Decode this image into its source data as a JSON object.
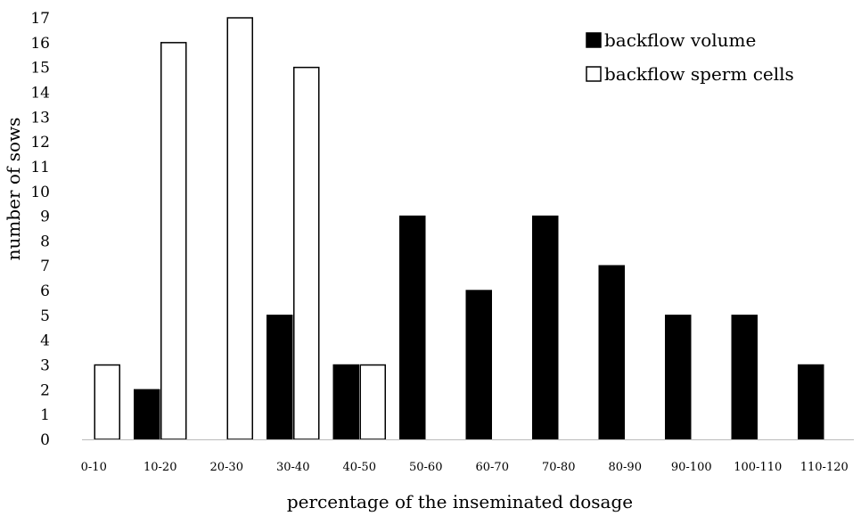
{
  "chart_data": {
    "type": "bar",
    "title": "",
    "xlabel": "percentage of the inseminated dosage",
    "ylabel": "number of sows",
    "ylim": [
      0,
      17
    ],
    "yticks": [
      0,
      1,
      2,
      3,
      4,
      5,
      6,
      7,
      8,
      9,
      10,
      11,
      12,
      13,
      14,
      15,
      16,
      17
    ],
    "categories": [
      "0-10",
      "10-20",
      "20-30",
      "30-40",
      "40-50",
      "50-60",
      "60-70",
      "70-80",
      "80-90",
      "90-100",
      "100-110",
      "110-120"
    ],
    "series": [
      {
        "name": "backflow volume",
        "color": "#000000",
        "values": [
          0,
          2,
          0,
          5,
          3,
          9,
          6,
          9,
          7,
          5,
          5,
          3
        ]
      },
      {
        "name": "backflow sperm cells",
        "color": "#ffffff",
        "values": [
          3,
          16,
          17,
          15,
          3,
          0,
          0,
          0,
          0,
          0,
          0,
          0
        ]
      }
    ],
    "legend_position": "top-right",
    "grid": false
  }
}
